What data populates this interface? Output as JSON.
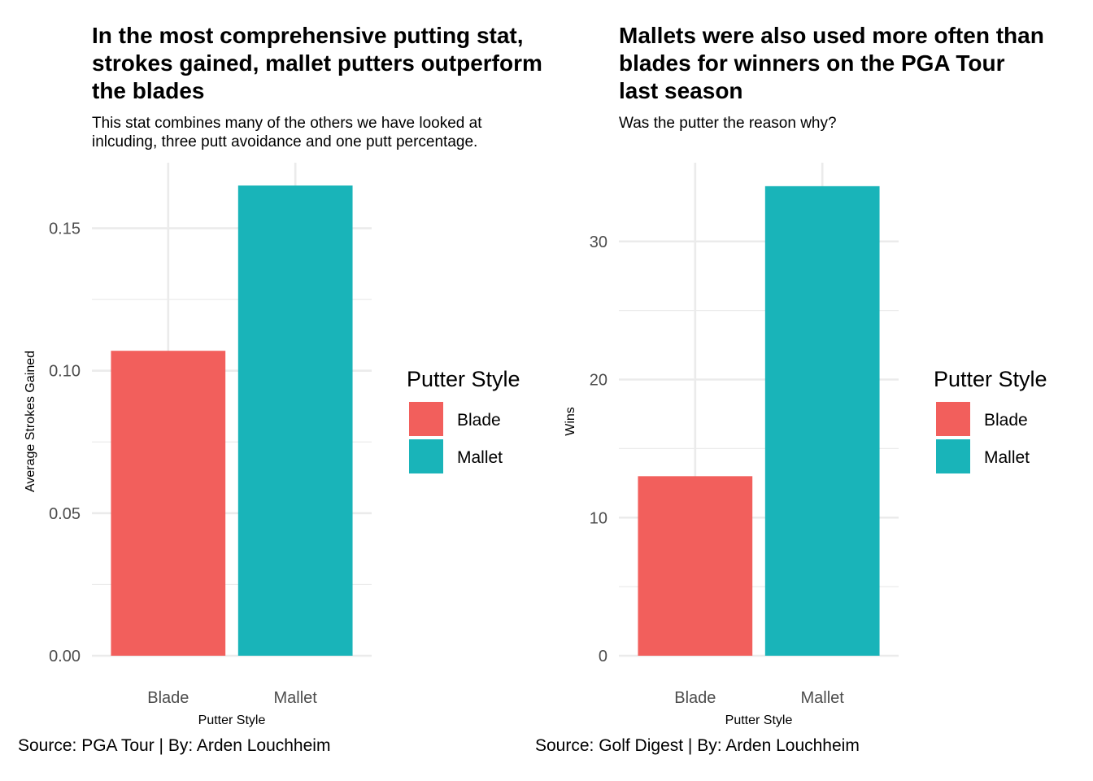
{
  "colors": {
    "blade": "#F25F5C",
    "mallet": "#19B4B9",
    "grid": "#EBEBEB",
    "tick_text": "#4D4D4D"
  },
  "chart_data": [
    {
      "type": "bar",
      "title": "In the most comprehensive putting stat, strokes gained, mallet putters outperform the blades",
      "title_lines": [
        "In the most comprehensive putting stat,",
        "strokes gained, mallet putters outperform",
        "the blades"
      ],
      "subtitle_lines": [
        "This stat combines many of the others we have looked at",
        "inlcuding, three putt avoidance and one putt percentage."
      ],
      "categories": [
        "Blade",
        "Mallet"
      ],
      "values": [
        0.107,
        0.165
      ],
      "xlabel": "Putter Style",
      "ylabel": "Average Strokes Gained",
      "ylim": [
        0,
        0.173
      ],
      "yticks": [
        0.0,
        0.05,
        0.1,
        0.15
      ],
      "ytick_labels": [
        "0.00",
        "0.05",
        "0.10",
        "0.15"
      ],
      "legend": {
        "title": "Putter Style",
        "entries": [
          "Blade",
          "Mallet"
        ],
        "position": "right"
      },
      "caption": "Source: PGA Tour | By: Arden Louchheim",
      "grid": true
    },
    {
      "type": "bar",
      "title": "Mallets were also used more often than blades for winners on the PGA Tour last season",
      "title_lines": [
        "Mallets were also used more often than",
        "blades for winners on the PGA Tour",
        "last season"
      ],
      "subtitle_lines": [
        "Was the putter the reason why?"
      ],
      "categories": [
        "Blade",
        "Mallet"
      ],
      "values": [
        13,
        34
      ],
      "xlabel": "Putter Style",
      "ylabel": "Wins",
      "ylim": [
        0,
        35.7
      ],
      "yticks": [
        0,
        10,
        20,
        30
      ],
      "ytick_labels": [
        "0",
        "10",
        "20",
        "30"
      ],
      "legend": {
        "title": "Putter Style",
        "entries": [
          "Blade",
          "Mallet"
        ],
        "position": "right"
      },
      "caption": "Source: Golf Digest | By: Arden Louchheim",
      "grid": true
    }
  ]
}
